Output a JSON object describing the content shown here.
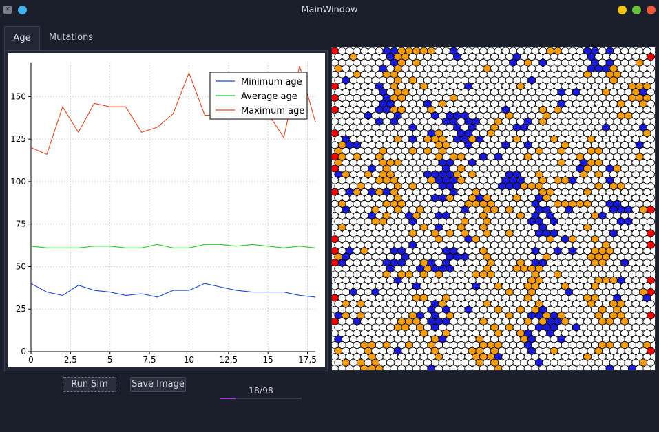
{
  "window": {
    "title": "MainWindow",
    "app_icon": "x11-app-icon",
    "controls": [
      {
        "name": "minimize",
        "color": "#f1c40f"
      },
      {
        "name": "maximize",
        "color": "#6ac13c"
      },
      {
        "name": "close",
        "color": "#ee5a3a"
      }
    ]
  },
  "tabs": [
    {
      "label": "Age",
      "active": true
    },
    {
      "label": "Mutations",
      "active": false
    }
  ],
  "chart_data": {
    "type": "line",
    "x": [
      0,
      1,
      2,
      3,
      4,
      5,
      6,
      7,
      8,
      9,
      10,
      11,
      12,
      13,
      14,
      15,
      16,
      17,
      18
    ],
    "xlim": [
      0,
      18
    ],
    "ylim": [
      0,
      170
    ],
    "x_ticks": [
      "0",
      "2,5",
      "5",
      "7,5",
      "10",
      "12,5",
      "15",
      "17,5"
    ],
    "x_tick_values": [
      0,
      2.5,
      5,
      7.5,
      10,
      12.5,
      15,
      17.5
    ],
    "y_ticks": [
      "0",
      "25",
      "50",
      "75",
      "100",
      "125",
      "150"
    ],
    "y_tick_values": [
      0,
      25,
      50,
      75,
      100,
      125,
      150
    ],
    "grid": true,
    "legend_position": "top-right",
    "series": [
      {
        "name": "Minimum age",
        "color": "#1c46d6",
        "values": [
          40,
          35,
          33,
          39,
          36,
          35,
          33,
          34,
          32,
          36,
          36,
          40,
          38,
          36,
          35,
          35,
          35,
          33,
          32
        ]
      },
      {
        "name": "Average age",
        "color": "#22cc22",
        "values": [
          62,
          61,
          61,
          61,
          62,
          62,
          61,
          61,
          63,
          61,
          61,
          63,
          63,
          62,
          63,
          62,
          61,
          62,
          61
        ]
      },
      {
        "name": "Maximum age",
        "color": "#e8441c",
        "values": [
          120,
          116,
          144,
          129,
          146,
          144,
          144,
          129,
          132,
          140,
          164,
          139,
          139,
          140,
          141,
          140,
          126,
          168,
          135
        ]
      }
    ]
  },
  "hex_grid": {
    "colors": {
      "empty": "#ffffff",
      "orange": "#f39c12",
      "blue": "#1a1ad6",
      "edge": "#ff0000",
      "outline": "#000000"
    }
  },
  "buttons": {
    "run_sim": "Run Sim",
    "save_image": "Save Image"
  },
  "progress": {
    "text": "18/98",
    "value": 18,
    "max": 98,
    "color": "#a43fd6"
  }
}
